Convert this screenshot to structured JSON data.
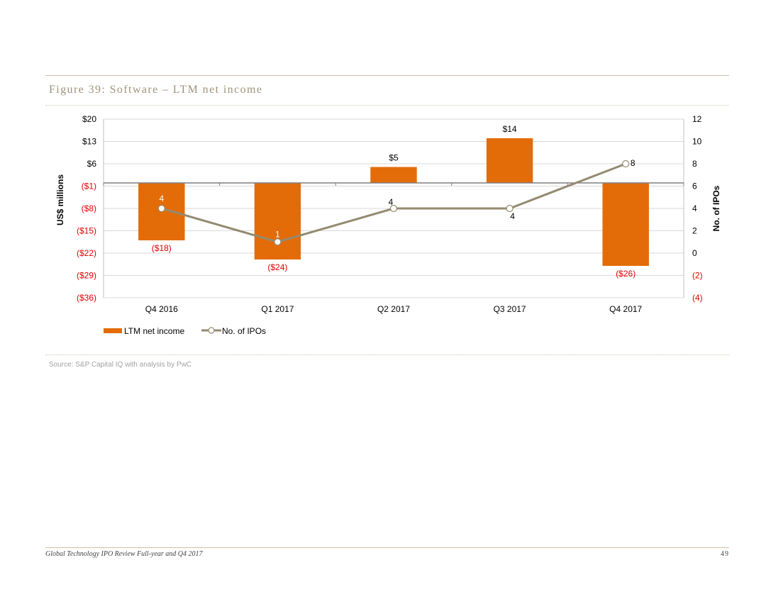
{
  "page": {
    "figure_title": "Figure 39: Software – LTM net income",
    "source": "Source: S&P Capital IQ with analysis by PwC",
    "footer_left": "Global Technology IPO Review Full-year and Q4 2017",
    "footer_page": "49"
  },
  "chart_data": {
    "type": "bar",
    "categories": [
      "Q4 2016",
      "Q1 2017",
      "Q2 2017",
      "Q3 2017",
      "Q4 2017"
    ],
    "series": [
      {
        "name": "LTM net income",
        "type": "bar",
        "axis": "left",
        "color": "#e36c09",
        "values": [
          -18,
          -24,
          5,
          14,
          -26
        ],
        "data_labels": [
          "($18)",
          "($24)",
          "$5",
          "$14",
          "($26)"
        ]
      },
      {
        "name": "No. of IPOs",
        "type": "line",
        "axis": "right",
        "color": "#948a6f",
        "values": [
          4,
          1,
          4,
          4,
          8
        ],
        "data_labels": [
          "4",
          "1",
          "4",
          "4",
          "8"
        ]
      }
    ],
    "y_left": {
      "label": "US$ millions",
      "min": -36,
      "max": 20,
      "ticks": [
        20,
        13,
        6,
        -1,
        -8,
        -15,
        -22,
        -29,
        -36
      ],
      "tick_labels": [
        "$20",
        "$13",
        "$6",
        "($1)",
        "($8)",
        "($15)",
        "($22)",
        "($29)",
        "($36)"
      ]
    },
    "y_right": {
      "label": "No. of IPOs",
      "min": -4,
      "max": 12,
      "ticks": [
        12,
        10,
        8,
        6,
        4,
        2,
        0,
        -2,
        -4
      ],
      "tick_labels": [
        "12",
        "10",
        "8",
        "6",
        "4",
        "2",
        "0",
        "(2)",
        "(4)"
      ]
    },
    "negative_label_color": "#e00000",
    "grid": true,
    "legend_position": "bottom-left"
  }
}
